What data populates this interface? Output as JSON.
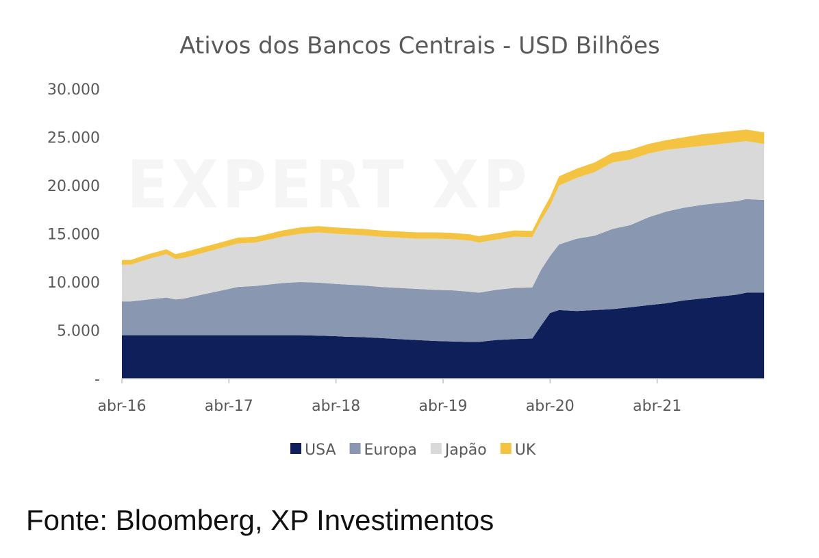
{
  "chart_data": {
    "type": "area",
    "stacked": true,
    "title": "Ativos dos Bancos Centrais - USD Bilhões",
    "watermark": "EXPERT XP",
    "ylim": [
      0,
      30000
    ],
    "xlim": [
      "2016-04",
      "2022-04"
    ],
    "y_ticks": [
      {
        "value": 30000,
        "label": "30.000"
      },
      {
        "value": 25000,
        "label": "25.000"
      },
      {
        "value": 20000,
        "label": "20.000"
      },
      {
        "value": 15000,
        "label": "15.000"
      },
      {
        "value": 10000,
        "label": "10.000"
      },
      {
        "value": 5000,
        "label": "5.000"
      },
      {
        "value": 0,
        "label": "-"
      }
    ],
    "x_ticks": [
      {
        "value": "2016-04",
        "label": "abr-16"
      },
      {
        "value": "2017-04",
        "label": "abr-17"
      },
      {
        "value": "2018-04",
        "label": "abr-18"
      },
      {
        "value": "2019-04",
        "label": "abr-19"
      },
      {
        "value": "2020-04",
        "label": "abr-20"
      },
      {
        "value": "2021-04",
        "label": "abr-21"
      }
    ],
    "legend_position": "bottom",
    "x": [
      "2016-04",
      "2016-05",
      "2016-07",
      "2016-09",
      "2016-10",
      "2016-11",
      "2017-01",
      "2017-03",
      "2017-05",
      "2017-07",
      "2017-08",
      "2017-10",
      "2017-12",
      "2018-02",
      "2018-04",
      "2018-05",
      "2018-07",
      "2018-09",
      "2018-11",
      "2019-01",
      "2019-03",
      "2019-05",
      "2019-07",
      "2019-08",
      "2019-10",
      "2019-12",
      "2020-02",
      "2020-03",
      "2020-04",
      "2020-05",
      "2020-07",
      "2020-09",
      "2020-11",
      "2021-01",
      "2021-03",
      "2021-05",
      "2021-07",
      "2021-09",
      "2021-11",
      "2022-01",
      "2022-02",
      "2022-04"
    ],
    "series": [
      {
        "name": "USA",
        "color": "#0f1f5a",
        "values": [
          4500,
          4500,
          4500,
          4500,
          4500,
          4500,
          4500,
          4500,
          4500,
          4500,
          4500,
          4500,
          4500,
          4450,
          4400,
          4350,
          4300,
          4200,
          4100,
          4000,
          3900,
          3850,
          3800,
          3800,
          4000,
          4100,
          4150,
          5500,
          6800,
          7100,
          7000,
          7100,
          7200,
          7400,
          7600,
          7800,
          8100,
          8300,
          8500,
          8700,
          8900,
          8900
        ]
      },
      {
        "name": "Europa",
        "color": "#8a97b0",
        "values": [
          3500,
          3500,
          3700,
          3900,
          3700,
          3800,
          4200,
          4600,
          5000,
          5100,
          5200,
          5400,
          5500,
          5500,
          5400,
          5400,
          5350,
          5300,
          5300,
          5300,
          5300,
          5300,
          5200,
          5100,
          5200,
          5300,
          5300,
          5800,
          5900,
          6800,
          7500,
          7700,
          8300,
          8500,
          9100,
          9500,
          9600,
          9700,
          9700,
          9700,
          9700,
          9600
        ]
      },
      {
        "name": "Japão",
        "color": "#d9d9d9",
        "values": [
          3800,
          3800,
          4200,
          4500,
          4200,
          4200,
          4300,
          4400,
          4500,
          4500,
          4600,
          4800,
          5000,
          5200,
          5200,
          5200,
          5200,
          5200,
          5200,
          5200,
          5300,
          5300,
          5300,
          5200,
          5200,
          5300,
          5200,
          5100,
          5200,
          6100,
          6300,
          6600,
          6900,
          6800,
          6600,
          6400,
          6200,
          6100,
          6100,
          6100,
          6000,
          5800
        ]
      },
      {
        "name": "UK",
        "color": "#f4c342",
        "values": [
          500,
          500,
          500,
          500,
          500,
          600,
          600,
          600,
          600,
          600,
          600,
          650,
          650,
          650,
          650,
          650,
          650,
          650,
          650,
          650,
          650,
          650,
          650,
          650,
          650,
          650,
          650,
          750,
          900,
          950,
          950,
          1000,
          1000,
          1000,
          1000,
          1000,
          1100,
          1200,
          1200,
          1200,
          1200,
          1200
        ]
      }
    ]
  },
  "footer": {
    "source": "Fonte: Bloomberg, XP Investimentos"
  }
}
